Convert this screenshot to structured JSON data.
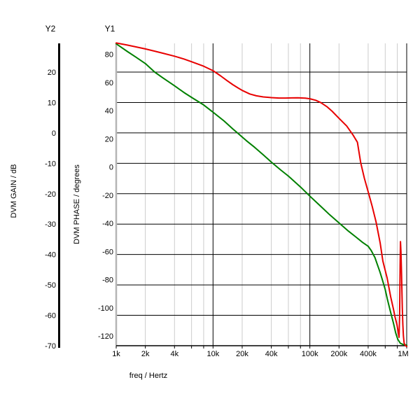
{
  "headings": {
    "y2": "Y2",
    "y1": "Y1"
  },
  "axes": {
    "gain": {
      "title": "DVM GAIN / dB",
      "unit": "dB",
      "ticks": [
        20,
        10,
        0,
        -10,
        -20,
        -30,
        -40,
        -50,
        -60,
        -70
      ],
      "range": [
        -70,
        29.3
      ],
      "axis_color": "#000000"
    },
    "phase": {
      "title": "DVM PHASE / degrees",
      "unit": "degrees",
      "ticks": [
        80,
        60,
        40,
        20,
        0,
        -20,
        -40,
        -60,
        -80,
        -100,
        -120
      ],
      "range": [
        -127.5,
        88
      ],
      "axis_color": "#b5b5b5"
    },
    "freq": {
      "title": "freq / Hertz",
      "scale": "log",
      "range_hz": [
        1000,
        1000000
      ],
      "ticks": [
        {
          "label": "1k",
          "hz": 1000
        },
        {
          "label": "2k",
          "hz": 2000
        },
        {
          "label": "4k",
          "hz": 4000
        },
        {
          "label": "10k",
          "hz": 10000
        },
        {
          "label": "20k",
          "hz": 20000
        },
        {
          "label": "40k",
          "hz": 40000
        },
        {
          "label": "100k",
          "hz": 100000
        },
        {
          "label": "200k",
          "hz": 200000
        },
        {
          "label": "400k",
          "hz": 400000
        },
        {
          "label": "1M",
          "hz": 1000000
        }
      ],
      "major_gridlines_hz": [
        10000,
        100000,
        1000000
      ],
      "minor_gridlines_hz": [
        2000,
        4000,
        6000,
        8000,
        20000,
        40000,
        60000,
        80000,
        200000,
        400000,
        600000,
        800000
      ]
    }
  },
  "colors": {
    "grid_major": "#000000",
    "grid_minor": "#cccccc",
    "gain_curve": "#008000",
    "phase_curve": "#e80000",
    "background": "#ffffff"
  },
  "chart_data": {
    "type": "line",
    "title": "",
    "xlabel": "freq / Hertz",
    "x_scale": "log",
    "x_range_hz": [
      1000,
      1000000
    ],
    "legend": "none",
    "grid": "on",
    "series": [
      {
        "name": "DVM GAIN",
        "yaxis": "gain",
        "unit": "dB",
        "color": "#008000",
        "points_hz_value": [
          [
            1000,
            29.3
          ],
          [
            1300,
            26.8
          ],
          [
            1600,
            24.9
          ],
          [
            2000,
            22.8
          ],
          [
            2500,
            20.0
          ],
          [
            3000,
            18.2
          ],
          [
            4000,
            15.5
          ],
          [
            5000,
            13.3
          ],
          [
            6000,
            11.7
          ],
          [
            8000,
            9.2
          ],
          [
            10000,
            6.8
          ],
          [
            13000,
            3.9
          ],
          [
            16000,
            1.3
          ],
          [
            18000,
            -0.1
          ],
          [
            22000,
            -2.5
          ],
          [
            27000,
            -4.8
          ],
          [
            33000,
            -7.2
          ],
          [
            40000,
            -9.6
          ],
          [
            50000,
            -12.2
          ],
          [
            60000,
            -14.2
          ],
          [
            80000,
            -17.8
          ],
          [
            100000,
            -20.8
          ],
          [
            130000,
            -24.2
          ],
          [
            160000,
            -26.9
          ],
          [
            200000,
            -29.6
          ],
          [
            250000,
            -32.3
          ],
          [
            300000,
            -34.3
          ],
          [
            350000,
            -36.0
          ],
          [
            400000,
            -37.3
          ],
          [
            430000,
            -38.7
          ],
          [
            470000,
            -41.0
          ],
          [
            500000,
            -43.5
          ],
          [
            530000,
            -45.8
          ],
          [
            560000,
            -48.3
          ],
          [
            600000,
            -51.5
          ],
          [
            630000,
            -54.5
          ],
          [
            680000,
            -58.8
          ],
          [
            730000,
            -62.6
          ],
          [
            770000,
            -65.8
          ],
          [
            810000,
            -67.9
          ],
          [
            860000,
            -69.2
          ],
          [
            920000,
            -69.6
          ],
          [
            1000000,
            -69.8
          ]
        ]
      },
      {
        "name": "DVM PHASE",
        "yaxis": "phase",
        "unit": "degrees",
        "color": "#e80000",
        "points_hz_value": [
          [
            1000,
            88.0
          ],
          [
            1300,
            86.5
          ],
          [
            1600,
            85.2
          ],
          [
            2000,
            83.8
          ],
          [
            2500,
            82.2
          ],
          [
            3000,
            80.8
          ],
          [
            4000,
            78.6
          ],
          [
            5000,
            76.6
          ],
          [
            6000,
            74.7
          ],
          [
            8000,
            71.5
          ],
          [
            10000,
            68.3
          ],
          [
            12000,
            64.6
          ],
          [
            14000,
            61.2
          ],
          [
            16000,
            58.4
          ],
          [
            18000,
            56.2
          ],
          [
            20000,
            54.3
          ],
          [
            24000,
            51.8
          ],
          [
            28000,
            50.5
          ],
          [
            33000,
            49.7
          ],
          [
            40000,
            49.2
          ],
          [
            48000,
            48.9
          ],
          [
            56000,
            48.9
          ],
          [
            65000,
            49.0
          ],
          [
            75000,
            49.1
          ],
          [
            90000,
            48.8
          ],
          [
            100000,
            48.4
          ],
          [
            115000,
            47.3
          ],
          [
            130000,
            45.6
          ],
          [
            150000,
            42.8
          ],
          [
            170000,
            39.5
          ],
          [
            200000,
            34.5
          ],
          [
            240000,
            29.0
          ],
          [
            280000,
            22.5
          ],
          [
            310000,
            17.5
          ],
          [
            335000,
            3.0
          ],
          [
            365000,
            -8.0
          ],
          [
            405000,
            -19.0
          ],
          [
            440000,
            -28.0
          ],
          [
            482000,
            -39.0
          ],
          [
            532000,
            -54.0
          ],
          [
            568000,
            -67.0
          ],
          [
            600000,
            -73.5
          ],
          [
            628000,
            -79.0
          ],
          [
            682000,
            -92.0
          ],
          [
            730000,
            -101.0
          ],
          [
            760000,
            -107.0
          ],
          [
            793000,
            -112.0
          ],
          [
            820000,
            -118.0
          ],
          [
            834000,
            -121.0
          ],
          [
            845000,
            -105.0
          ],
          [
            855000,
            -70.0
          ],
          [
            862000,
            -53.0
          ],
          [
            872000,
            -60.0
          ],
          [
            885000,
            -77.0
          ],
          [
            900000,
            -100.0
          ],
          [
            912000,
            -112.0
          ],
          [
            925000,
            -120.0
          ],
          [
            940000,
            -125.0
          ],
          [
            960000,
            -126.5
          ],
          [
            1000000,
            -127.5
          ]
        ]
      }
    ]
  }
}
